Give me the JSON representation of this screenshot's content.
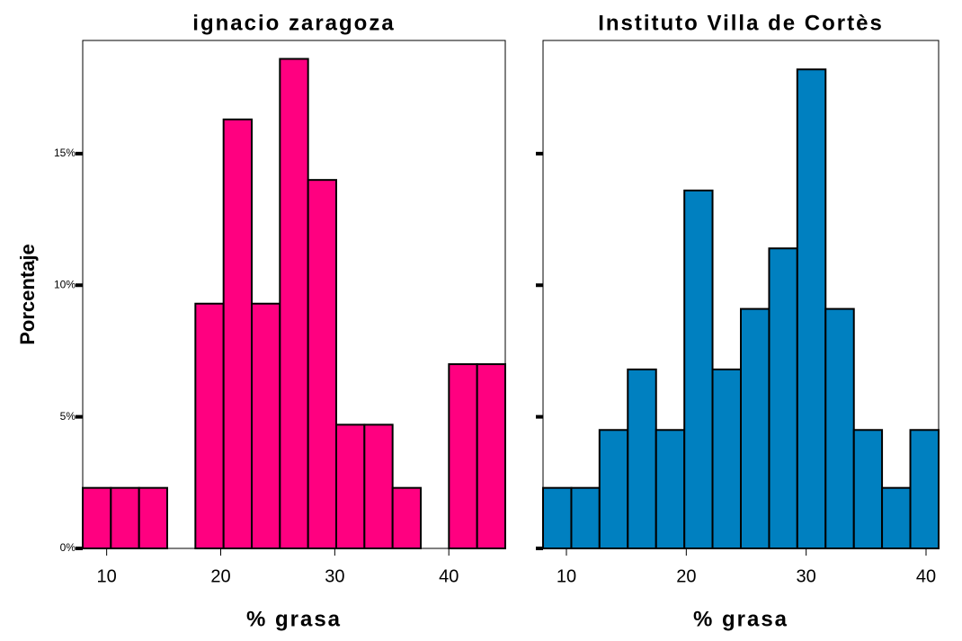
{
  "chart_data": [
    {
      "type": "histogram",
      "title": "ignacio zaragoza",
      "xlabel": "% grasa",
      "ylabel": "Porcentaje",
      "color": "#ff0080",
      "bins": [
        7.9,
        10.37,
        12.84,
        15.31,
        17.78,
        20.25,
        22.72,
        25.19,
        27.66,
        30.13,
        32.6,
        35.07,
        37.54,
        40.01,
        42.48,
        44.95
      ],
      "values": [
        2.3,
        2.3,
        2.3,
        0,
        9.3,
        16.3,
        9.3,
        18.6,
        14.0,
        4.7,
        4.7,
        2.3,
        0,
        7.0,
        7.0
      ],
      "xlim": [
        7.9,
        44.95
      ],
      "xticks": [
        10,
        20,
        30,
        40
      ],
      "ylim": [
        0,
        19.3
      ],
      "yticks": [
        {
          "value": 0,
          "label": "0%"
        },
        {
          "value": 5,
          "label": "5%"
        },
        {
          "value": 10,
          "label": "10%"
        },
        {
          "value": 15,
          "label": "15%"
        }
      ]
    },
    {
      "type": "histogram",
      "title": "Instituto Villa de Cortès",
      "xlabel": "% grasa",
      "color": "#0080c0",
      "bins": [
        8.05,
        10.41,
        12.76,
        15.12,
        17.48,
        19.84,
        22.19,
        24.55,
        26.91,
        29.26,
        31.62,
        33.98,
        36.33,
        38.69,
        41.05
      ],
      "values": [
        2.3,
        2.3,
        4.5,
        6.8,
        4.5,
        13.6,
        6.8,
        9.1,
        11.4,
        18.2,
        9.1,
        4.5,
        2.3,
        4.5
      ],
      "xlim": [
        8.05,
        41.05
      ],
      "xticks": [
        10,
        20,
        30,
        40
      ],
      "ylim": [
        0,
        19.3
      ],
      "yticks": [
        0,
        5,
        10,
        15
      ]
    }
  ]
}
